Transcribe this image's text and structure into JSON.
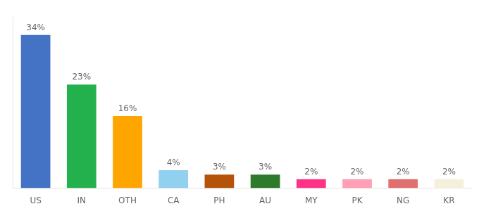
{
  "chart_data": {
    "type": "bar",
    "categories": [
      "US",
      "IN",
      "OTH",
      "CA",
      "PH",
      "AU",
      "MY",
      "PK",
      "NG",
      "KR"
    ],
    "values": [
      34,
      23,
      16,
      4,
      3,
      3,
      2,
      2,
      2,
      2
    ],
    "value_labels": [
      "34%",
      "23%",
      "16%",
      "4%",
      "3%",
      "3%",
      "2%",
      "2%",
      "2%",
      "2%"
    ],
    "colors": [
      "#4472c4",
      "#22b14c",
      "#ffa500",
      "#92d0f0",
      "#b45309",
      "#2d7a2d",
      "#ff3385",
      "#ff9eb5",
      "#e07070",
      "#f5f0dc"
    ],
    "ylim": [
      0,
      38
    ],
    "data_labels": true,
    "tick_labels": "x",
    "grid": false
  }
}
